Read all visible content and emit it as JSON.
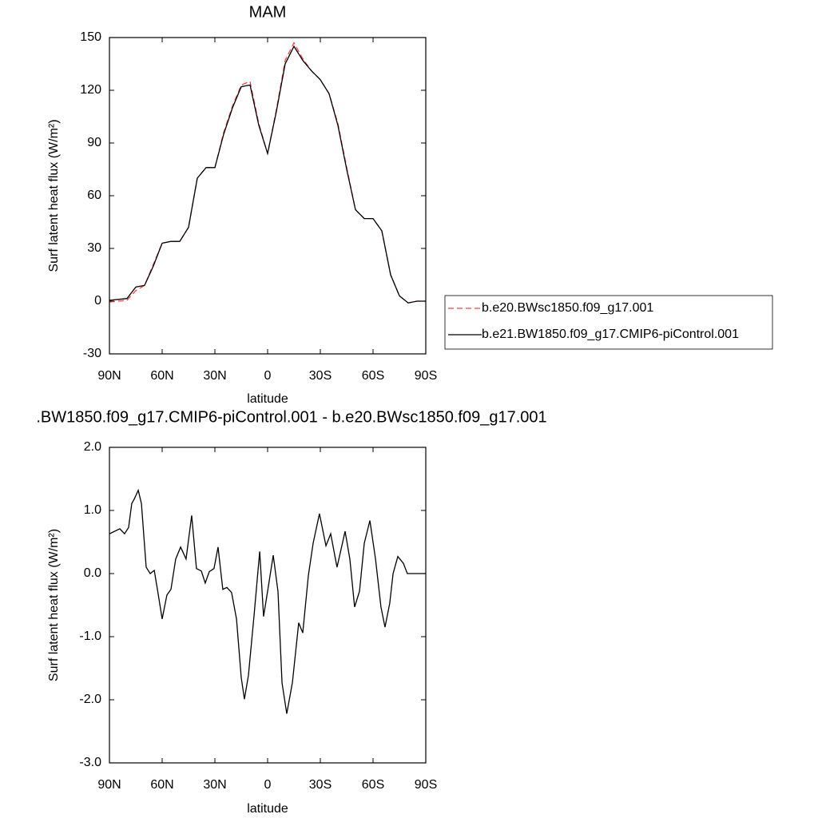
{
  "chart_data": [
    {
      "type": "line",
      "title": "MAM",
      "x_label": "latitude",
      "y_label": "Surf latent heat flux (W/m²)",
      "xlim": [
        90,
        -90
      ],
      "xticks": [
        {
          "value": 90,
          "label": "90N"
        },
        {
          "value": 60,
          "label": "60N"
        },
        {
          "value": 30,
          "label": "30N"
        },
        0,
        {
          "value": -30,
          "label": "30S"
        },
        {
          "value": -60,
          "label": "60S"
        },
        {
          "value": -90,
          "label": "90S"
        }
      ],
      "ylim": [
        -30,
        150
      ],
      "yticks": [
        -30,
        0,
        30,
        60,
        90,
        120,
        150
      ],
      "legend": "right",
      "x": [
        90,
        85,
        80,
        75,
        70,
        65,
        60,
        55,
        50,
        45,
        40,
        35,
        30,
        25,
        20,
        15,
        10,
        5,
        0,
        -5,
        -10,
        -15,
        -20,
        -25,
        -30,
        -35,
        -40,
        -45,
        -50,
        -55,
        -60,
        -65,
        -70,
        -75,
        -80,
        -85,
        -90
      ],
      "series": [
        {
          "name": "b.e20.BWsc1850.f09_g17.001",
          "color": "#ff0000",
          "dash": true,
          "values": [
            -0.5,
            0,
            0.5,
            6,
            9,
            21,
            33,
            34,
            34,
            42,
            70,
            76,
            76,
            96,
            111,
            123,
            125,
            101,
            84,
            109,
            137,
            147,
            138,
            131,
            126,
            118,
            101,
            76,
            52,
            47,
            47,
            40,
            15,
            3,
            -1,
            0,
            0
          ]
        },
        {
          "name": "b.e21.BW1850.f09_g17.CMIP6-piControl.001",
          "color": "#000000",
          "dash": false,
          "values": [
            0.5,
            1,
            1.5,
            8,
            9,
            20,
            33,
            34,
            34,
            42,
            70,
            76,
            76,
            95,
            110,
            122,
            123,
            100,
            84,
            108,
            135,
            145,
            137,
            131,
            126,
            118,
            100,
            75,
            52,
            47,
            47,
            40,
            15,
            3,
            -1,
            0,
            0
          ]
        }
      ]
    },
    {
      "type": "line",
      "title": ".BW1850.f09_g17.CMIP6-piControl.001 - b.e20.BWsc1850.f09_g17.001",
      "x_label": "latitude",
      "y_label": "Surf latent heat flux (W/m²)",
      "xlim": [
        90,
        -90
      ],
      "xticks": [
        {
          "value": 90,
          "label": "90N"
        },
        {
          "value": 60,
          "label": "60N"
        },
        {
          "value": 30,
          "label": "30N"
        },
        0,
        {
          "value": -30,
          "label": "30S"
        },
        {
          "value": -60,
          "label": "60S"
        },
        {
          "value": -90,
          "label": "90S"
        }
      ],
      "ylim": [
        -3,
        2
      ],
      "yticks": [
        {
          "value": -3,
          "label": "-3.0"
        },
        {
          "value": -2,
          "label": "-2.0"
        },
        {
          "value": -1,
          "label": "-1.0"
        },
        {
          "value": 0,
          "label": "0.0"
        },
        {
          "value": 1,
          "label": "1.0"
        },
        {
          "value": 2,
          "label": "2.0"
        }
      ],
      "x": [
        90,
        84.1,
        81.4,
        79.1,
        77.3,
        75.9,
        73.6,
        71.8,
        69.1,
        66.8,
        64.5,
        62.7,
        60,
        57.3,
        55,
        52.3,
        49.5,
        46.4,
        43.2,
        40.5,
        37.7,
        35.5,
        33.2,
        30.5,
        28.2,
        25.5,
        23.2,
        20.5,
        17.7,
        15,
        13.2,
        10.9,
        7.7,
        4.5,
        2.3,
        0,
        -3.2,
        -5.9,
        -8.2,
        -10.9,
        -14.1,
        -17.7,
        -20,
        -23.2,
        -25.9,
        -29.5,
        -33.2,
        -35.9,
        -39.5,
        -44.1,
        -46.8,
        -49.5,
        -52.3,
        -55,
        -58.2,
        -61.4,
        -64.5,
        -66.8,
        -69.5,
        -71.4,
        -74.1,
        -77.3,
        -79.5,
        -84.1,
        -90
      ],
      "series": [
        {
          "color": "#000000",
          "dash": false,
          "values": [
            0.63,
            0.71,
            0.63,
            0.73,
            1.11,
            1.18,
            1.32,
            1.11,
            0.1,
            0,
            0.05,
            -0.25,
            -0.72,
            -0.34,
            -0.25,
            0.23,
            0.42,
            0.23,
            0.92,
            0.08,
            0.04,
            -0.15,
            0.03,
            0.08,
            0.42,
            -0.25,
            -0.22,
            -0.3,
            -0.72,
            -1.65,
            -1.99,
            -1.61,
            -0.66,
            0.35,
            -0.68,
            -0.28,
            0.29,
            -0.28,
            -1.73,
            -2.22,
            -1.73,
            -0.78,
            -0.94,
            -0.03,
            0.48,
            0.95,
            0.44,
            0.63,
            0.1,
            0.67,
            0.23,
            -0.53,
            -0.28,
            0.48,
            0.84,
            0.23,
            -0.53,
            -0.85,
            -0.47,
            0,
            0.27,
            0.16,
            0,
            0,
            0
          ]
        }
      ]
    }
  ]
}
